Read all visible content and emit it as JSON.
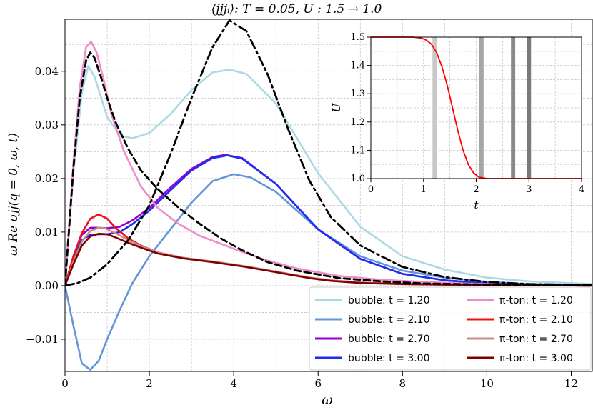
{
  "chart_data": [
    {
      "type": "line",
      "title": "⟨jjjᵢ⟩: T = 0.05, U : 1.5 → 1.0",
      "xlabel": "ω",
      "ylabel": "ω Re σjj(q = 0, ω, t)",
      "xlim": [
        0,
        12.5
      ],
      "ylim": [
        -0.016,
        0.0497
      ],
      "x_ticks": [
        "0",
        "2",
        "4",
        "6",
        "8",
        "10",
        "12"
      ],
      "y_ticks": [
        "−0.01",
        "0.00",
        "0.01",
        "0.02",
        "0.03",
        "0.04"
      ],
      "grid": true,
      "legend_position": "lower-right",
      "series": [
        {
          "name": "bubble: t = 1.20",
          "color": "#add8e6",
          "style": "solid",
          "x": [
            0,
            0.2,
            0.4,
            0.55,
            0.7,
            1.0,
            1.3,
            1.6,
            2.0,
            2.5,
            3.0,
            3.5,
            3.9,
            4.3,
            5.0,
            6.0,
            7.0,
            8.0,
            9.0,
            10.0,
            11.0,
            12.5
          ],
          "y": [
            0,
            0.021,
            0.036,
            0.041,
            0.039,
            0.0315,
            0.028,
            0.0275,
            0.0285,
            0.032,
            0.0365,
            0.0398,
            0.0403,
            0.0395,
            0.034,
            0.021,
            0.011,
            0.0055,
            0.003,
            0.0015,
            0.0008,
            0.0003
          ]
        },
        {
          "name": "bubble: t = 2.10",
          "color": "#6495dc",
          "style": "solid",
          "x": [
            0,
            0.2,
            0.4,
            0.6,
            0.8,
            1.0,
            1.3,
            1.6,
            2.0,
            2.5,
            3.0,
            3.5,
            4.0,
            4.4,
            5.0,
            6.0,
            7.0,
            8.0,
            9.0,
            10.0,
            11.0,
            12.5
          ],
          "y": [
            0,
            -0.0075,
            -0.0145,
            -0.0157,
            -0.014,
            -0.01,
            -0.0045,
            0.0005,
            0.0055,
            0.0105,
            0.0155,
            0.0195,
            0.0208,
            0.0202,
            0.0175,
            0.0105,
            0.0055,
            0.0028,
            0.0015,
            0.0007,
            0.0003,
            0.0001
          ]
        },
        {
          "name": "bubble: t = 2.70",
          "color": "#9400d3",
          "style": "solid",
          "x": [
            0,
            0.2,
            0.4,
            0.6,
            0.8,
            1.0,
            1.3,
            1.6,
            2.0,
            2.5,
            3.0,
            3.5,
            3.8,
            4.2,
            5.0,
            6.0,
            7.0,
            8.0,
            9.0,
            10.0,
            11.0,
            12.5
          ],
          "y": [
            0,
            0.0055,
            0.0095,
            0.0108,
            0.0108,
            0.0107,
            0.011,
            0.0122,
            0.0145,
            0.0183,
            0.0218,
            0.024,
            0.0244,
            0.0238,
            0.019,
            0.0105,
            0.005,
            0.0022,
            0.001,
            0.0004,
            0.0002,
            0.0001
          ]
        },
        {
          "name": "bubble: t = 3.00",
          "color": "#1c2ff0",
          "style": "solid",
          "x": [
            0,
            0.2,
            0.4,
            0.6,
            0.8,
            1.0,
            1.3,
            1.6,
            2.0,
            2.5,
            3.0,
            3.5,
            3.85,
            4.2,
            5.0,
            6.0,
            7.0,
            8.0,
            9.0,
            10.0,
            11.0,
            12.5
          ],
          "y": [
            0,
            0.005,
            0.0085,
            0.0095,
            0.0096,
            0.0096,
            0.01,
            0.0115,
            0.014,
            0.0178,
            0.0215,
            0.0238,
            0.0243,
            0.0237,
            0.019,
            0.0105,
            0.005,
            0.0022,
            0.001,
            0.0004,
            0.0002,
            0.0001
          ]
        },
        {
          "name": "π-ton: t = 1.20",
          "color": "#f08cc8",
          "style": "solid",
          "x": [
            0,
            0.2,
            0.35,
            0.5,
            0.62,
            0.75,
            0.9,
            1.1,
            1.4,
            1.8,
            2.2,
            2.7,
            3.2,
            3.7,
            4.2,
            4.8,
            5.5,
            6.5,
            7.5,
            8.5,
            9.5,
            10.5,
            12.5
          ],
          "y": [
            0,
            0.023,
            0.037,
            0.0445,
            0.0455,
            0.0435,
            0.039,
            0.032,
            0.025,
            0.0185,
            0.0145,
            0.0115,
            0.0093,
            0.0078,
            0.0063,
            0.0047,
            0.0032,
            0.0018,
            0.0011,
            0.0007,
            0.0004,
            0.0002,
            0.0001
          ]
        },
        {
          "name": "π-ton: t = 2.10",
          "color": "#ee1111",
          "style": "solid",
          "x": [
            0,
            0.2,
            0.4,
            0.6,
            0.8,
            1.0,
            1.2,
            1.5,
            1.8,
            2.2,
            2.8,
            3.5,
            4.2,
            4.8,
            5.3,
            5.8,
            6.3,
            7.0,
            8.0,
            9.0,
            10.0,
            11.0,
            12.5
          ],
          "y": [
            0,
            0.0055,
            0.0098,
            0.0125,
            0.0133,
            0.0125,
            0.0108,
            0.0088,
            0.0075,
            0.0062,
            0.0052,
            0.0045,
            0.0037,
            0.0029,
            0.0022,
            0.0015,
            0.001,
            0.0006,
            0.0003,
            0.0002,
            0.0001,
            0.0001,
            0
          ]
        },
        {
          "name": "π-ton: t = 2.70",
          "color": "#c88c8c",
          "style": "solid",
          "x": [
            0,
            0.2,
            0.4,
            0.6,
            0.8,
            0.95,
            1.2,
            1.5,
            1.8,
            2.2,
            2.8,
            3.5,
            4.2,
            4.8,
            5.3,
            5.8,
            6.3,
            7.0,
            8.0,
            9.0,
            10.0,
            11.0,
            12.5
          ],
          "y": [
            0,
            0.0045,
            0.0082,
            0.0102,
            0.0108,
            0.0107,
            0.0098,
            0.0085,
            0.0074,
            0.0062,
            0.0052,
            0.0045,
            0.0037,
            0.0029,
            0.0022,
            0.0015,
            0.001,
            0.0006,
            0.0003,
            0.0002,
            0.0001,
            0.0001,
            0
          ]
        },
        {
          "name": "π-ton: t = 3.00",
          "color": "#800000",
          "style": "solid",
          "x": [
            0,
            0.2,
            0.4,
            0.6,
            0.8,
            1.0,
            1.2,
            1.5,
            1.8,
            2.2,
            2.8,
            3.5,
            4.2,
            4.8,
            5.3,
            5.8,
            6.3,
            7.0,
            8.0,
            9.0,
            10.0,
            11.0,
            12.5
          ],
          "y": [
            0,
            0.004,
            0.0075,
            0.0092,
            0.0097,
            0.0096,
            0.009,
            0.008,
            0.0071,
            0.006,
            0.0051,
            0.0044,
            0.0036,
            0.0028,
            0.0021,
            0.0014,
            0.0009,
            0.0005,
            0.0003,
            0.0002,
            0.0001,
            0.0001,
            0
          ]
        },
        {
          "name": "",
          "color": "#000000",
          "style": "dashed",
          "x": [
            0,
            0.2,
            0.35,
            0.5,
            0.6,
            0.7,
            0.85,
            1.0,
            1.2,
            1.5,
            1.8,
            2.2,
            2.7,
            3.2,
            3.7,
            4.2,
            4.8,
            5.5,
            6.5,
            7.5,
            8.5,
            10.0,
            12.5
          ],
          "y": [
            0,
            0.022,
            0.035,
            0.042,
            0.0435,
            0.0425,
            0.039,
            0.035,
            0.0305,
            0.0255,
            0.0215,
            0.018,
            0.0145,
            0.0115,
            0.0088,
            0.0066,
            0.0044,
            0.0028,
            0.0014,
            0.0008,
            0.0004,
            0.0002,
            0.0001
          ]
        },
        {
          "name": "",
          "color": "#000000",
          "style": "dashdot",
          "x": [
            0,
            0.3,
            0.6,
            1.0,
            1.5,
            2.0,
            2.5,
            3.0,
            3.5,
            3.9,
            4.3,
            4.8,
            5.3,
            5.8,
            6.3,
            7.0,
            8.0,
            9.0,
            10.0,
            11.0,
            12.5
          ],
          "y": [
            0,
            0.0005,
            0.0015,
            0.004,
            0.0085,
            0.015,
            0.0245,
            0.035,
            0.0445,
            0.0495,
            0.0475,
            0.0395,
            0.029,
            0.0195,
            0.0128,
            0.0075,
            0.0035,
            0.0016,
            0.0007,
            0.0003,
            0.0001
          ]
        }
      ]
    },
    {
      "type": "line",
      "title": "",
      "xlabel": "t",
      "ylabel": "U",
      "xlim": [
        0,
        4
      ],
      "ylim": [
        1.0,
        1.5
      ],
      "x_ticks": [
        "0",
        "1",
        "2",
        "3",
        "4"
      ],
      "y_ticks": [
        "1.0",
        "1.1",
        "1.2",
        "1.3",
        "1.4",
        "1.5"
      ],
      "grid": true,
      "series": [
        {
          "name": "",
          "color": "#ff0000",
          "style": "solid",
          "x": [
            0,
            0.8,
            0.95,
            1.05,
            1.15,
            1.25,
            1.35,
            1.45,
            1.5,
            1.55,
            1.65,
            1.75,
            1.85,
            1.95,
            2.05,
            2.2,
            4.0
          ],
          "y": [
            1.5,
            1.5,
            1.497,
            1.49,
            1.475,
            1.445,
            1.395,
            1.33,
            1.29,
            1.25,
            1.17,
            1.1,
            1.05,
            1.02,
            1.005,
            1.0,
            1.0
          ]
        }
      ],
      "highlight_bands": [
        {
          "x": [
            1.17,
            1.25
          ],
          "color": "#c8c8c8"
        },
        {
          "x": [
            2.06,
            2.14
          ],
          "color": "#a6a6a6"
        },
        {
          "x": [
            2.66,
            2.74
          ],
          "color": "#8a8a8a"
        },
        {
          "x": [
            2.96,
            3.04
          ],
          "color": "#7a7a7a"
        }
      ]
    }
  ]
}
